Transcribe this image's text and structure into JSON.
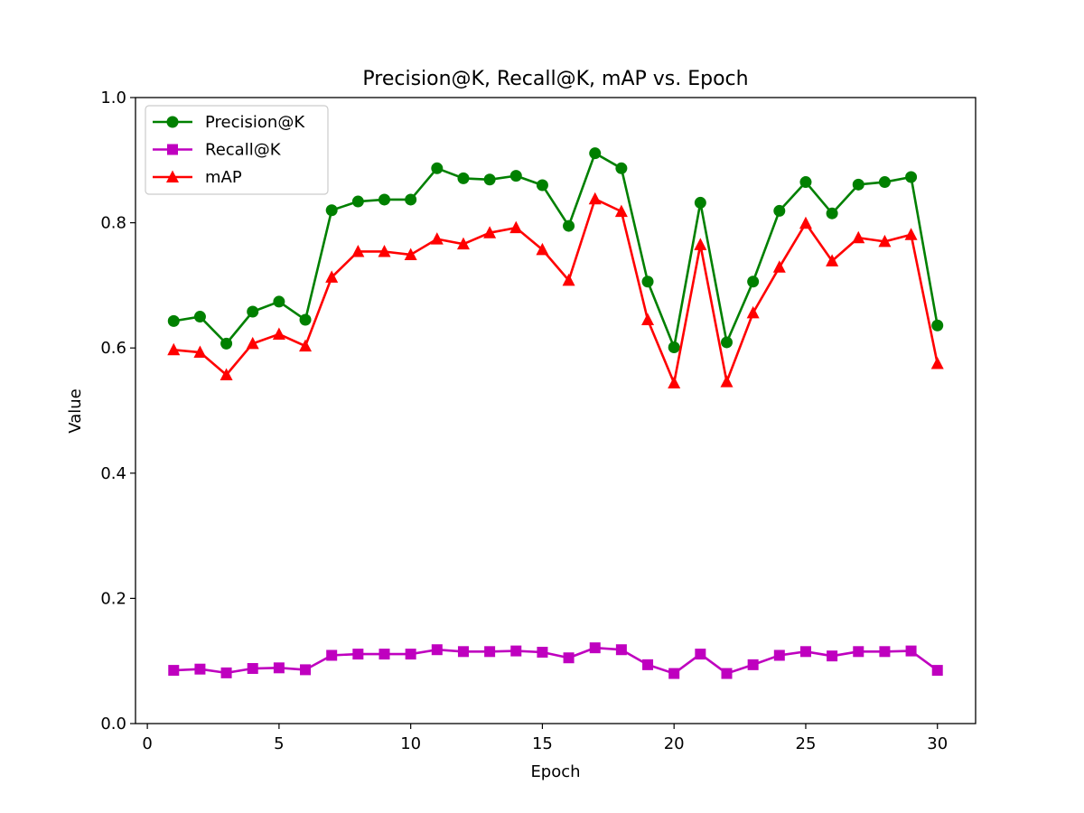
{
  "chart_data": {
    "type": "line",
    "title": "Precision@K, Recall@K, mAP vs. Epoch",
    "xlabel": "Epoch",
    "ylabel": "Value",
    "xlim": [
      -0.45,
      31.45
    ],
    "ylim": [
      0.0,
      1.0
    ],
    "xticks": [
      0,
      5,
      10,
      15,
      20,
      25,
      30
    ],
    "xtick_labels": [
      "0",
      "5",
      "10",
      "15",
      "20",
      "25",
      "30"
    ],
    "yticks": [
      0.0,
      0.2,
      0.4,
      0.6,
      0.8,
      1.0
    ],
    "ytick_labels": [
      "0.0",
      "0.2",
      "0.4",
      "0.6",
      "0.8",
      "1.0"
    ],
    "grid": false,
    "legend_position": "top-left",
    "x": [
      1,
      2,
      3,
      4,
      5,
      6,
      7,
      8,
      9,
      10,
      11,
      12,
      13,
      14,
      15,
      16,
      17,
      18,
      19,
      20,
      21,
      22,
      23,
      24,
      25,
      26,
      27,
      28,
      29,
      30
    ],
    "series": [
      {
        "name": "Precision@K",
        "color": "#008000",
        "marker": "circle",
        "values": [
          0.643,
          0.65,
          0.607,
          0.658,
          0.674,
          0.645,
          0.82,
          0.834,
          0.837,
          0.837,
          0.887,
          0.871,
          0.869,
          0.875,
          0.86,
          0.795,
          0.911,
          0.887,
          0.706,
          0.601,
          0.832,
          0.609,
          0.706,
          0.819,
          0.865,
          0.815,
          0.861,
          0.865,
          0.873,
          0.636
        ]
      },
      {
        "name": "Recall@K",
        "color": "#bf00bf",
        "marker": "square",
        "values": [
          0.085,
          0.087,
          0.081,
          0.088,
          0.089,
          0.086,
          0.109,
          0.111,
          0.111,
          0.111,
          0.118,
          0.115,
          0.115,
          0.116,
          0.114,
          0.105,
          0.121,
          0.118,
          0.094,
          0.08,
          0.111,
          0.08,
          0.094,
          0.109,
          0.115,
          0.108,
          0.115,
          0.115,
          0.116,
          0.085
        ]
      },
      {
        "name": "mAP",
        "color": "#ff0000",
        "marker": "triangle",
        "values": [
          0.597,
          0.593,
          0.557,
          0.607,
          0.622,
          0.603,
          0.713,
          0.754,
          0.754,
          0.749,
          0.774,
          0.766,
          0.784,
          0.792,
          0.757,
          0.708,
          0.838,
          0.818,
          0.645,
          0.544,
          0.765,
          0.546,
          0.656,
          0.729,
          0.799,
          0.739,
          0.776,
          0.77,
          0.781,
          0.575
        ]
      }
    ]
  }
}
